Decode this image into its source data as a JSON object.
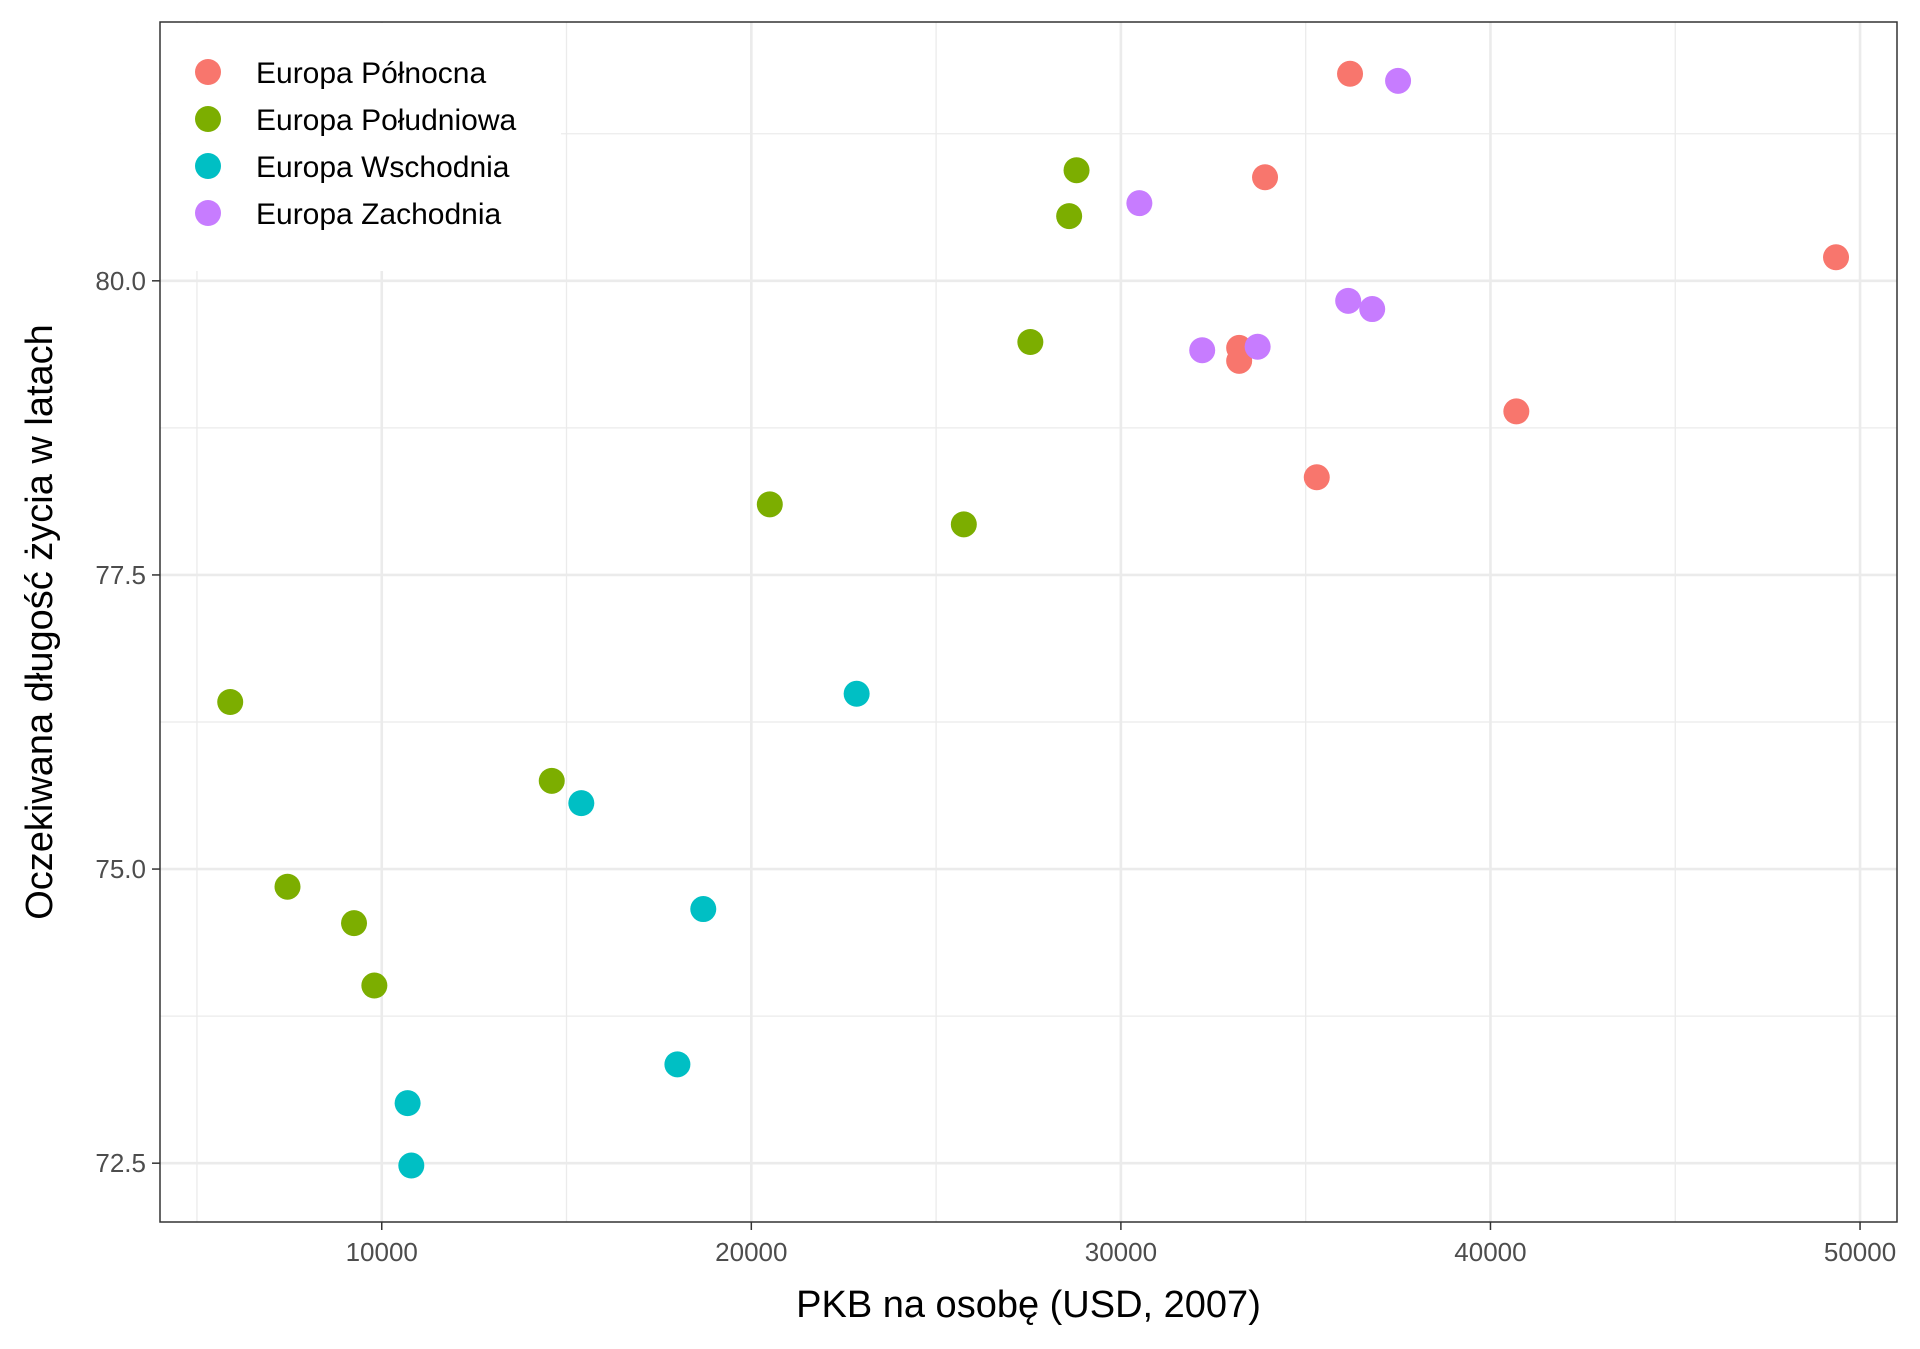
{
  "chart_data": {
    "type": "scatter",
    "title": "",
    "xlabel": "PKB na osobę (USD, 2007)",
    "ylabel": "Oczekiwana długość życia w latach",
    "xlim": [
      4000,
      51000
    ],
    "ylim": [
      72.0,
      82.2
    ],
    "x_ticks": [
      10000,
      20000,
      30000,
      40000,
      50000
    ],
    "x_tick_labels": [
      "10000",
      "20000",
      "30000",
      "40000",
      "50000"
    ],
    "x_minor_ticks": [
      5000,
      15000,
      25000,
      35000,
      45000
    ],
    "y_ticks": [
      72.5,
      75.0,
      77.5,
      80.0
    ],
    "y_tick_labels": [
      "72.5",
      "75.0",
      "77.5",
      "80.0"
    ],
    "y_minor_ticks": [
      73.75,
      76.25,
      78.75,
      81.25
    ],
    "grid": true,
    "legend_position": "top-left",
    "series": [
      {
        "name": "Europa Północna",
        "color": "#F8766D",
        "points": [
          {
            "x": 36200,
            "y": 81.76
          },
          {
            "x": 33900,
            "y": 80.88
          },
          {
            "x": 49350,
            "y": 80.2
          },
          {
            "x": 33200,
            "y": 79.43
          },
          {
            "x": 33200,
            "y": 79.32
          },
          {
            "x": 40700,
            "y": 78.89
          },
          {
            "x": 35300,
            "y": 78.33
          }
        ]
      },
      {
        "name": "Europa Południowa",
        "color": "#7CAE00",
        "points": [
          {
            "x": 28800,
            "y": 80.94
          },
          {
            "x": 28600,
            "y": 80.55
          },
          {
            "x": 27550,
            "y": 79.48
          },
          {
            "x": 20500,
            "y": 78.1
          },
          {
            "x": 25750,
            "y": 77.93
          },
          {
            "x": 5900,
            "y": 76.42
          },
          {
            "x": 14600,
            "y": 75.75
          },
          {
            "x": 7450,
            "y": 74.85
          },
          {
            "x": 9250,
            "y": 74.54
          },
          {
            "x": 9800,
            "y": 74.01
          }
        ]
      },
      {
        "name": "Europa Wschodnia",
        "color": "#00BFC4",
        "points": [
          {
            "x": 22850,
            "y": 76.49
          },
          {
            "x": 15400,
            "y": 75.56
          },
          {
            "x": 18700,
            "y": 74.66
          },
          {
            "x": 18000,
            "y": 73.34
          },
          {
            "x": 10700,
            "y": 73.01
          },
          {
            "x": 10800,
            "y": 72.48
          }
        ]
      },
      {
        "name": "Europa Zachodnia",
        "color": "#C77CFF",
        "points": [
          {
            "x": 37500,
            "y": 81.7
          },
          {
            "x": 30500,
            "y": 80.66
          },
          {
            "x": 36150,
            "y": 79.83
          },
          {
            "x": 36800,
            "y": 79.76
          },
          {
            "x": 33700,
            "y": 79.44
          },
          {
            "x": 32200,
            "y": 79.41
          }
        ]
      }
    ]
  }
}
